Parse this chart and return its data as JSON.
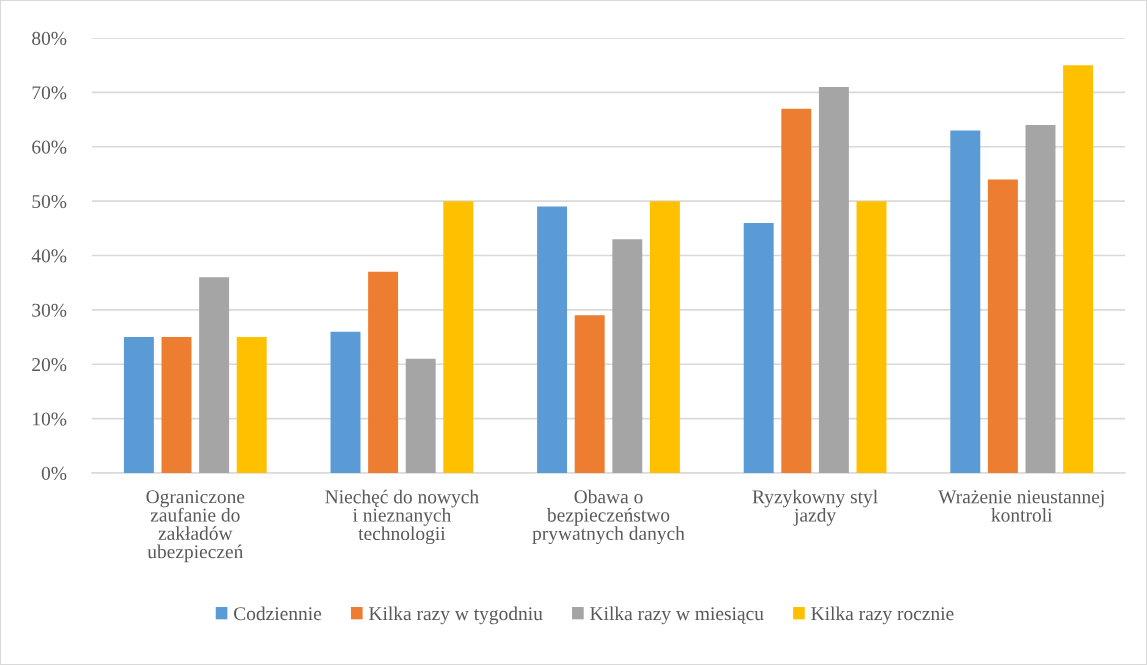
{
  "chart_data": {
    "type": "bar",
    "categories": [
      "Ograniczone\nzaufanie do\nzakładów\nubezpieczeń",
      "Niechęć do nowych\ni nieznanych\ntechnologii",
      "Obawa o\nbezpieczeństwo\nprywatnych danych",
      "Ryzykowny styl\njazdy",
      "Wrażenie nieustannej\nkontroli"
    ],
    "series": [
      {
        "name": "Codziennie",
        "color": "#5b9bd5",
        "values": [
          25,
          26,
          49,
          46,
          63
        ]
      },
      {
        "name": "Kilka razy w tygodniu",
        "color": "#ed7d31",
        "values": [
          25,
          37,
          29,
          67,
          54
        ]
      },
      {
        "name": "Kilka razy w miesiącu",
        "color": "#a5a5a5",
        "values": [
          36,
          21,
          43,
          71,
          64
        ]
      },
      {
        "name": "Kilka razy rocznie",
        "color": "#ffc000",
        "values": [
          25,
          50,
          50,
          50,
          75
        ]
      }
    ],
    "ylim": [
      0,
      80
    ],
    "yticks": [
      {
        "value": 0,
        "label": "0%"
      },
      {
        "value": 10,
        "label": "10%"
      },
      {
        "value": 20,
        "label": "20%"
      },
      {
        "value": 30,
        "label": "30%"
      },
      {
        "value": 40,
        "label": "40%"
      },
      {
        "value": 50,
        "label": "50%"
      },
      {
        "value": 60,
        "label": "60%"
      },
      {
        "value": 70,
        "label": "70%"
      },
      {
        "value": 80,
        "label": "80%"
      }
    ],
    "grid": "y",
    "legend": "bottom"
  }
}
